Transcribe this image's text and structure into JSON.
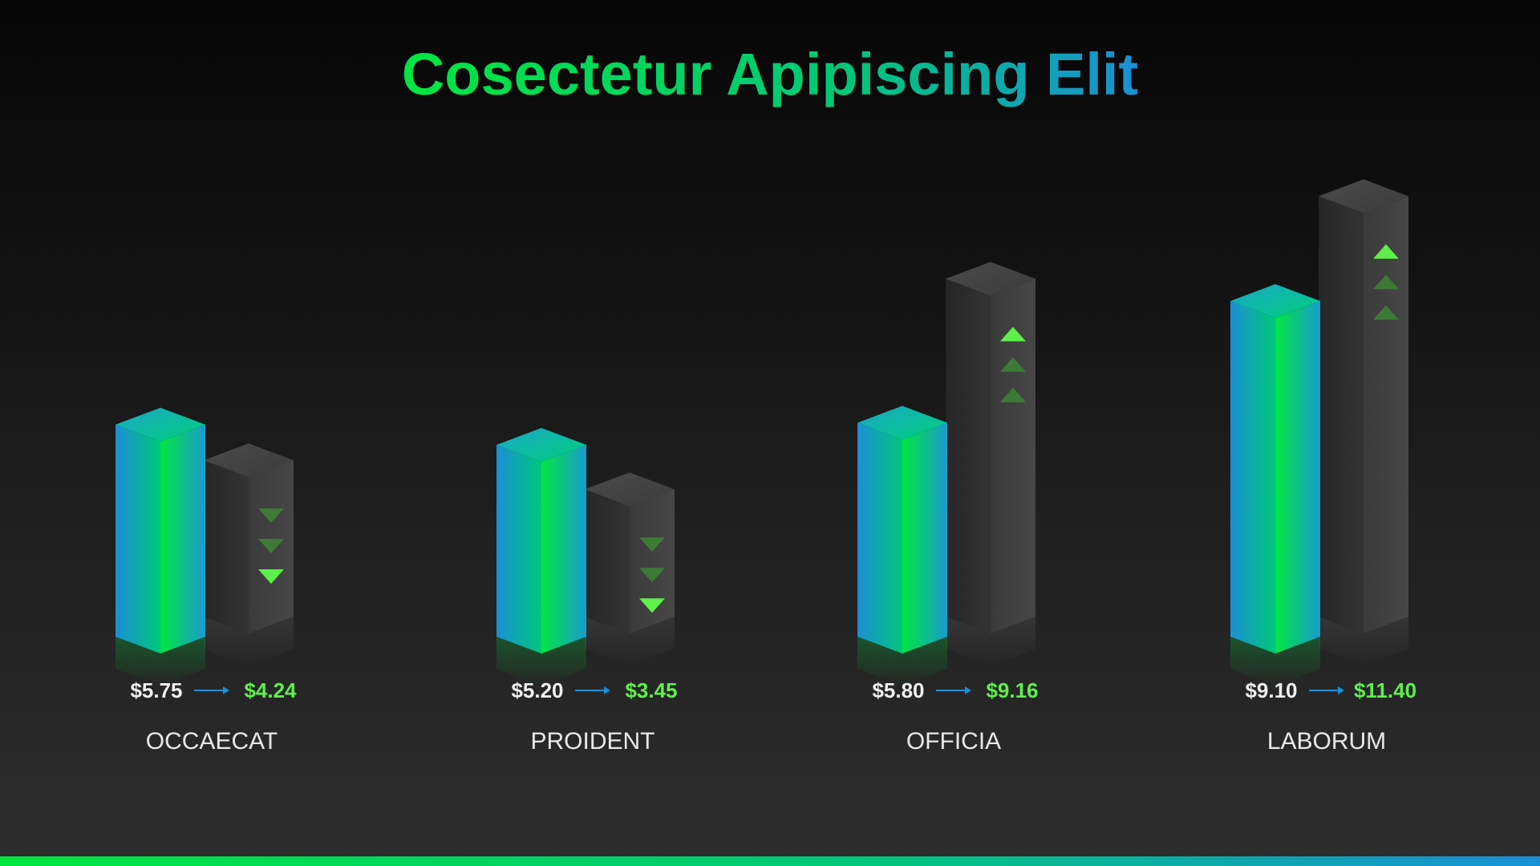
{
  "chart_data": {
    "type": "bar",
    "title": "Cosectetur Apipiscing Elit",
    "categories": [
      "OCCAECAT",
      "PROIDENT",
      "OFFICIA",
      "LABORUM"
    ],
    "series": [
      {
        "values": [
          5.75,
          5.2,
          5.8,
          9.1
        ]
      },
      {
        "values": [
          4.24,
          3.45,
          9.16,
          11.4
        ]
      }
    ],
    "value_labels": {
      "from": [
        "$5.75",
        "$5.20",
        "$5.80",
        "$9.10"
      ],
      "to": [
        "$4.24",
        "$3.45",
        "$9.16",
        "$11.40"
      ]
    },
    "trend": [
      "down",
      "down",
      "up",
      "up"
    ],
    "xlabel": "",
    "ylabel": "",
    "grid": false,
    "legend": "none"
  },
  "colors": {
    "gradient_green": "#00e640",
    "gradient_blue": "#1a8fd6",
    "gray_bar": "#3a3a3a",
    "arrow_bright": "#5ef04a",
    "arrow_dim": "#3d7a36",
    "label_white": "#f0f0f0",
    "label_green": "#5ef04a",
    "connector_arrow": "#1a8fd6"
  }
}
